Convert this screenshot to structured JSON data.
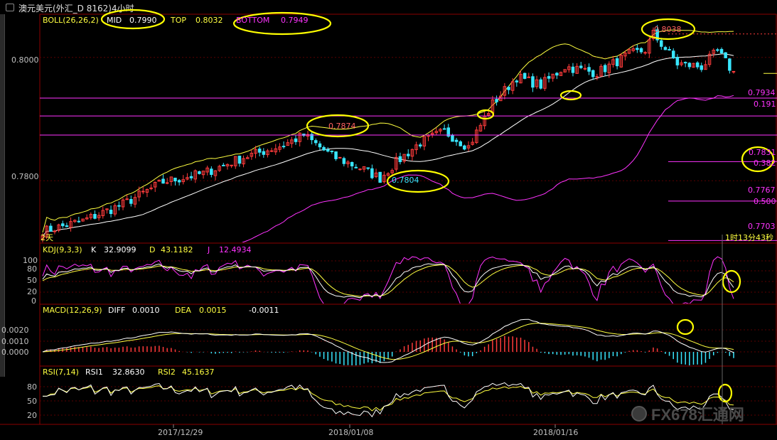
{
  "window": {
    "title": "澳元美元(外汇_D 8162)4小时"
  },
  "colors": {
    "background": "#000000",
    "border": "#8b0000",
    "grid": "#5a0000",
    "up": "#ff3b3b",
    "down": "#39e6ff",
    "white": "#ffffff",
    "yellow": "#ffff40",
    "magenta": "#ff33ff",
    "annotation": "#ffff00"
  },
  "main_panel": {
    "legend": {
      "name": "BOLL(26,26,2)",
      "mid_label": "MID",
      "mid_value": "0.7990",
      "top_label": "TOP",
      "top_value": "0.8032",
      "bottom_label": "BOTTOM",
      "bottom_value": "0.7949"
    },
    "y_ticks": [
      "0.8000",
      "0.7800"
    ],
    "corner_label": "2天",
    "countdown": "1时13分43秒",
    "annotations": {
      "high": "0.8038",
      "peak_mid": "0.7874",
      "low": "0.7804"
    },
    "fib_levels": [
      {
        "price": "0.7934",
        "ratio": "0.191"
      },
      {
        "price": "0.7831",
        "ratio": "0.382"
      },
      {
        "price": "0.7767",
        "ratio": "0.500"
      },
      {
        "price": "0.7703",
        "ratio": ""
      }
    ]
  },
  "kdj_panel": {
    "name": "KDJ(9,3,3)",
    "k_label": "K",
    "k_value": "32.9099",
    "d_label": "D",
    "d_value": "43.1182",
    "j_label": "J",
    "j_value": "12.4934",
    "y_ticks": [
      "100",
      "80",
      "50",
      "20",
      "0"
    ]
  },
  "macd_panel": {
    "name": "MACD(12,26,9)",
    "diff_label": "DIFF",
    "diff_value": "0.0010",
    "dea_label": "DEA",
    "dea_value": "0.0015",
    "macd_value": "-0.0011",
    "y_ticks": [
      "0.0020",
      "0.0010",
      "0.0000"
    ]
  },
  "rsi_panel": {
    "name": "RSI(7,14)",
    "rsi1_label": "RSI1",
    "rsi1_value": "32.8630",
    "rsi2_label": "RSI2",
    "rsi2_value": "45.1637",
    "y_ticks": [
      "80",
      "50",
      "20"
    ]
  },
  "x_axis": {
    "ticks": [
      "2017/12/29",
      "2018/01/08",
      "2018/01/16"
    ]
  },
  "watermark": {
    "text": "FX678汇通网"
  },
  "chart_data": {
    "type": "candlestick",
    "title": "澳元美元(外汇_D 8162)4小时",
    "y_range": [
      0.77,
      0.807
    ],
    "x_ticks": [
      "2017/12/29",
      "2018/01/08",
      "2018/01/16"
    ],
    "bollinger": {
      "period": 26,
      "width": 2,
      "mid": 0.799,
      "top": 0.8032,
      "bottom": 0.7949
    },
    "price_control_points": [
      [
        0,
        0.7718
      ],
      [
        10,
        0.7735
      ],
      [
        20,
        0.7762
      ],
      [
        30,
        0.7798
      ],
      [
        40,
        0.7812
      ],
      [
        50,
        0.7838
      ],
      [
        60,
        0.7858
      ],
      [
        65,
        0.7874
      ],
      [
        72,
        0.784
      ],
      [
        80,
        0.7818
      ],
      [
        84,
        0.7804
      ],
      [
        88,
        0.783
      ],
      [
        94,
        0.7862
      ],
      [
        100,
        0.788
      ],
      [
        106,
        0.7855
      ],
      [
        112,
        0.7925
      ],
      [
        118,
        0.7968
      ],
      [
        124,
        0.7955
      ],
      [
        130,
        0.7985
      ],
      [
        138,
        0.7975
      ],
      [
        146,
        0.8005
      ],
      [
        150,
        0.8012
      ],
      [
        152,
        0.8038
      ],
      [
        158,
        0.799
      ],
      [
        164,
        0.7985
      ],
      [
        168,
        0.801
      ],
      [
        172,
        0.7975
      ]
    ],
    "annotated_levels": [
      0.8038,
      0.7874,
      0.7804
    ],
    "fibonacci": [
      {
        "price": 0.7934,
        "ratio": 0.191
      },
      {
        "price": 0.7831,
        "ratio": 0.382
      },
      {
        "price": 0.7767,
        "ratio": 0.5
      },
      {
        "price": 0.7703,
        "ratio": null
      }
    ],
    "kdj": {
      "K": 32.9099,
      "D": 43.1182,
      "J": 12.4934
    },
    "macd": {
      "DIFF": 0.001,
      "DEA": 0.0015,
      "MACD": -0.0011
    },
    "rsi": {
      "RSI1": 32.863,
      "RSI2": 45.1637
    }
  }
}
